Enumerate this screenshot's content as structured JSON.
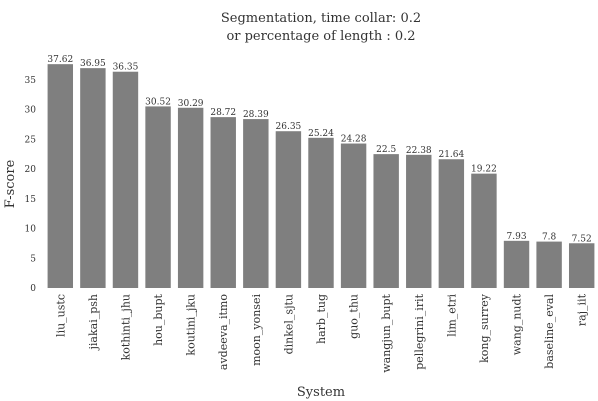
{
  "chart_data": {
    "type": "bar",
    "title": "Segmentation, time collar: 0.2",
    "subtitle": "or percentage of length : 0.2",
    "xlabel": "System",
    "ylabel": "F-score",
    "ylim": [
      0,
      40
    ],
    "yticks": [
      0,
      5,
      10,
      15,
      20,
      25,
      30,
      35
    ],
    "grid": false,
    "bar_color": "#7f7f7f",
    "categories": [
      "liu_ustc",
      "jiakai_psh",
      "kothinti_jhu",
      "hou_bupt",
      "koutini_jku",
      "avdeeva_itmo",
      "moon_yonsei",
      "dinkel_sjtu",
      "harb_tug",
      "guo_thu",
      "wangjun_bupt",
      "pellegrini_irit",
      "lim_etri",
      "kong_surrey",
      "wang_nudt",
      "baseline_eval",
      "raj_iit"
    ],
    "values": [
      37.62,
      36.95,
      36.35,
      30.52,
      30.29,
      28.72,
      28.39,
      26.35,
      25.24,
      24.28,
      22.5,
      22.38,
      21.64,
      19.22,
      7.93,
      7.8,
      7.52
    ]
  }
}
